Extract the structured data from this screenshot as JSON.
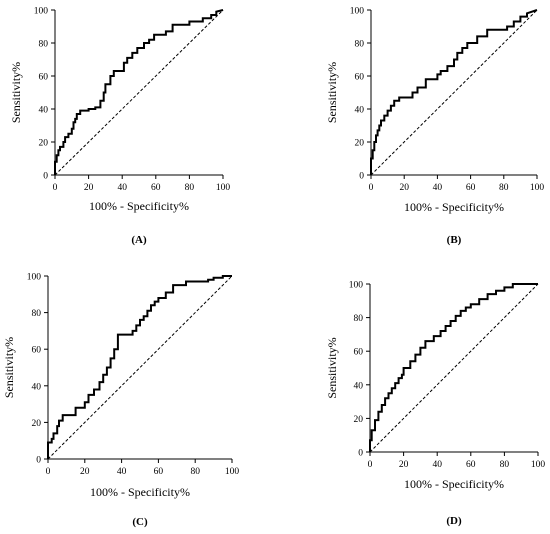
{
  "chart_data": [
    {
      "type": "line",
      "caption": "(A)",
      "xlabel": "100% - Specificity%",
      "ylabel": "Sensitivity%",
      "xlim": [
        0,
        100
      ],
      "ylim": [
        0,
        100
      ],
      "xticks": [
        "0",
        "20",
        "40",
        "60",
        "80",
        "100"
      ],
      "yticks": [
        "0",
        "20",
        "40",
        "60",
        "80",
        "100"
      ],
      "reference_line": true,
      "series": [
        {
          "x": [
            0,
            0,
            1,
            1,
            2,
            2,
            3,
            3,
            5,
            5,
            6,
            6,
            8,
            8,
            10,
            10,
            11,
            11,
            12,
            12,
            13,
            13,
            15,
            15,
            20,
            20,
            24,
            24,
            27,
            27,
            29,
            29,
            30,
            30,
            33,
            33,
            35,
            35,
            41,
            41,
            43,
            43,
            46,
            46,
            49,
            49,
            53,
            53,
            56,
            56,
            59,
            59,
            66,
            66,
            70,
            70,
            80,
            80,
            88,
            88,
            93,
            93,
            96,
            96,
            100
          ],
          "y": [
            0,
            8,
            8,
            12,
            12,
            15,
            15,
            17,
            17,
            20,
            20,
            23,
            23,
            25,
            25,
            28,
            28,
            32,
            32,
            34,
            34,
            37,
            37,
            39,
            39,
            40,
            40,
            41,
            41,
            45,
            45,
            50,
            50,
            55,
            55,
            60,
            60,
            63,
            63,
            68,
            68,
            71,
            71,
            74,
            74,
            77,
            77,
            80,
            80,
            82,
            82,
            85,
            85,
            87,
            87,
            91,
            91,
            93,
            93,
            95,
            95,
            97,
            97,
            99,
            100
          ]
        }
      ]
    },
    {
      "type": "line",
      "caption": "(B)",
      "xlabel": "100% - Specificity%",
      "ylabel": "Sensitivity%",
      "xlim": [
        0,
        100
      ],
      "ylim": [
        0,
        100
      ],
      "xticks": [
        "0",
        "20",
        "40",
        "60",
        "80",
        "100"
      ],
      "yticks": [
        "0",
        "20",
        "40",
        "60",
        "80",
        "100"
      ],
      "reference_line": true,
      "series": [
        {
          "x": [
            0,
            0,
            1,
            1,
            2,
            2,
            3,
            3,
            4,
            4,
            5,
            5,
            6,
            6,
            8,
            8,
            10,
            10,
            12,
            12,
            14,
            14,
            17,
            17,
            25,
            25,
            28,
            28,
            33,
            33,
            40,
            40,
            42,
            42,
            46,
            46,
            50,
            50,
            52,
            52,
            55,
            55,
            58,
            58,
            64,
            64,
            70,
            70,
            82,
            82,
            86,
            86,
            90,
            90,
            94,
            94,
            100
          ],
          "y": [
            0,
            10,
            10,
            15,
            15,
            20,
            20,
            24,
            24,
            27,
            27,
            30,
            30,
            33,
            33,
            36,
            36,
            39,
            39,
            42,
            42,
            45,
            45,
            47,
            47,
            50,
            50,
            53,
            53,
            58,
            58,
            61,
            61,
            63,
            63,
            66,
            66,
            70,
            70,
            74,
            74,
            77,
            77,
            80,
            80,
            84,
            84,
            88,
            88,
            90,
            90,
            93,
            93,
            96,
            96,
            98,
            100
          ]
        }
      ]
    },
    {
      "type": "line",
      "caption": "(C)",
      "xlabel": "100% - Specificity%",
      "ylabel": "Sensitivity%",
      "xlim": [
        0,
        100
      ],
      "ylim": [
        0,
        100
      ],
      "xticks": [
        "0",
        "20",
        "40",
        "60",
        "80",
        "100"
      ],
      "yticks": [
        "0",
        "20",
        "40",
        "60",
        "80",
        "100"
      ],
      "reference_line": true,
      "series": [
        {
          "x": [
            0,
            0,
            2,
            2,
            3,
            3,
            5,
            5,
            6,
            6,
            8,
            8,
            15,
            15,
            20,
            20,
            22,
            22,
            25,
            25,
            28,
            28,
            30,
            30,
            32,
            32,
            34,
            34,
            36,
            36,
            38,
            38,
            46,
            46,
            48,
            48,
            50,
            50,
            52,
            52,
            54,
            54,
            56,
            56,
            58,
            58,
            60,
            60,
            64,
            64,
            68,
            68,
            75,
            75,
            87,
            87,
            90,
            90,
            95,
            95,
            100
          ],
          "y": [
            0,
            9,
            9,
            11,
            11,
            14,
            14,
            18,
            18,
            21,
            21,
            24,
            24,
            28,
            28,
            31,
            31,
            35,
            35,
            38,
            38,
            42,
            42,
            46,
            46,
            50,
            50,
            55,
            55,
            60,
            60,
            68,
            68,
            70,
            70,
            73,
            73,
            76,
            76,
            78,
            78,
            81,
            81,
            84,
            84,
            86,
            86,
            88,
            88,
            91,
            91,
            95,
            95,
            97,
            97,
            98,
            98,
            99,
            99,
            100,
            100
          ]
        }
      ]
    },
    {
      "type": "line",
      "caption": "(D)",
      "xlabel": "100% - Specificity%",
      "ylabel": "Sensitivity%",
      "xlim": [
        0,
        100
      ],
      "ylim": [
        0,
        100
      ],
      "xticks": [
        "0",
        "20",
        "40",
        "60",
        "80",
        "100"
      ],
      "yticks": [
        "0",
        "20",
        "40",
        "60",
        "80",
        "100"
      ],
      "reference_line": true,
      "series": [
        {
          "x": [
            0,
            0,
            1,
            1,
            3,
            3,
            5,
            5,
            7,
            7,
            9,
            9,
            11,
            11,
            13,
            13,
            15,
            15,
            17,
            17,
            19,
            19,
            20,
            20,
            24,
            24,
            27,
            27,
            30,
            30,
            33,
            33,
            38,
            38,
            42,
            42,
            45,
            45,
            48,
            48,
            51,
            51,
            54,
            54,
            57,
            57,
            60,
            60,
            65,
            65,
            70,
            70,
            75,
            75,
            80,
            80,
            85,
            85,
            100
          ],
          "y": [
            0,
            7,
            7,
            13,
            13,
            19,
            19,
            24,
            24,
            28,
            28,
            32,
            32,
            35,
            35,
            38,
            38,
            41,
            41,
            44,
            44,
            46,
            46,
            50,
            50,
            54,
            54,
            58,
            58,
            62,
            62,
            66,
            66,
            69,
            69,
            72,
            72,
            75,
            75,
            78,
            78,
            81,
            81,
            84,
            84,
            86,
            86,
            88,
            88,
            91,
            91,
            94,
            94,
            96,
            96,
            98,
            98,
            100,
            100
          ]
        }
      ]
    }
  ]
}
